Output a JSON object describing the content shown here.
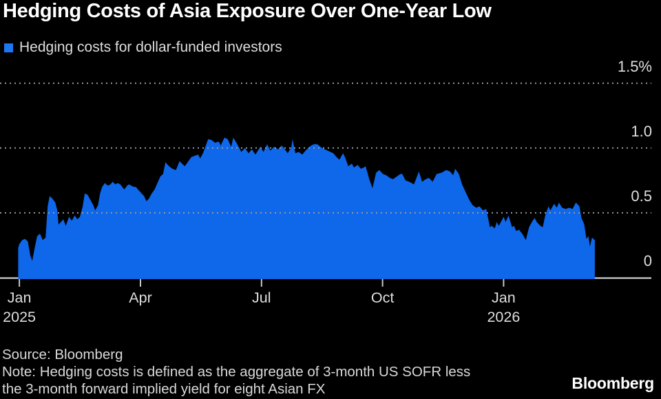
{
  "title": "Hedging Costs of Asia Exposure Over One-Year Low",
  "legend": {
    "label": "Hedging costs for dollar-funded investors",
    "swatch_color": "#1b78f2"
  },
  "footer": {
    "source": "Source: Bloomberg",
    "note_line1": "Note: Hedging costs is defined as the aggregate of 3-month US SOFR less",
    "note_line2": "the 3-month forward implied yield for eight Asian FX",
    "brand": "Bloomberg"
  },
  "colors": {
    "background": "#000000",
    "area": "#0f67ea",
    "grid": "#9a9a9a",
    "axis_line": "#e8e8e8",
    "tick": "#c9c9c9",
    "text": "#dedede",
    "title": "#ffffff"
  },
  "chart_data": {
    "type": "area",
    "title": "Hedging Costs of Asia Exposure Over One-Year Low",
    "unit": "%",
    "grid": "dotted horizontal, drawn over series",
    "legend_position": "top-left",
    "x_axis_note": "x = months since 1 Jan 2025",
    "xlim_months": [
      -0.48,
      15.9
    ],
    "ylim": [
      0,
      1.69
    ],
    "yticks": [
      {
        "v": 0,
        "label": "0"
      },
      {
        "v": 0.5,
        "label": "0.5"
      },
      {
        "v": 1.0,
        "label": "1.0"
      },
      {
        "v": 1.5,
        "label": "1.5%"
      }
    ],
    "xticks": [
      {
        "m": 0,
        "label": "Jan",
        "sub": "2025"
      },
      {
        "m": 3,
        "label": "Apr",
        "sub": ""
      },
      {
        "m": 6,
        "label": "Jul",
        "sub": ""
      },
      {
        "m": 9,
        "label": "Oct",
        "sub": ""
      },
      {
        "m": 12,
        "label": "Jan",
        "sub": "2026"
      }
    ],
    "series": [
      {
        "name": "Hedging costs for dollar-funded investors",
        "points": [
          [
            -0.03,
            0.23
          ],
          [
            0,
            0.26
          ],
          [
            0.07,
            0.29
          ],
          [
            0.14,
            0.3
          ],
          [
            0.21,
            0.28
          ],
          [
            0.27,
            0.17
          ],
          [
            0.32,
            0.13
          ],
          [
            0.38,
            0.23
          ],
          [
            0.44,
            0.32
          ],
          [
            0.51,
            0.34
          ],
          [
            0.58,
            0.29
          ],
          [
            0.65,
            0.31
          ],
          [
            0.7,
            0.55
          ],
          [
            0.75,
            0.63
          ],
          [
            0.82,
            0.61
          ],
          [
            0.89,
            0.58
          ],
          [
            0.94,
            0.52
          ],
          [
            0.97,
            0.41
          ],
          [
            1.03,
            0.43
          ],
          [
            1.09,
            0.45
          ],
          [
            1.15,
            0.4
          ],
          [
            1.23,
            0.47
          ],
          [
            1.3,
            0.44
          ],
          [
            1.37,
            0.48
          ],
          [
            1.44,
            0.45
          ],
          [
            1.5,
            0.47
          ],
          [
            1.57,
            0.55
          ],
          [
            1.62,
            0.65
          ],
          [
            1.69,
            0.64
          ],
          [
            1.76,
            0.6
          ],
          [
            1.83,
            0.56
          ],
          [
            1.88,
            0.52
          ],
          [
            1.95,
            0.56
          ],
          [
            2.0,
            0.65
          ],
          [
            2.05,
            0.7
          ],
          [
            2.12,
            0.73
          ],
          [
            2.19,
            0.71
          ],
          [
            2.26,
            0.72
          ],
          [
            2.31,
            0.74
          ],
          [
            2.38,
            0.72
          ],
          [
            2.43,
            0.73
          ],
          [
            2.5,
            0.72
          ],
          [
            2.55,
            0.7
          ],
          [
            2.6,
            0.68
          ],
          [
            2.67,
            0.71
          ],
          [
            2.72,
            0.72
          ],
          [
            2.77,
            0.71
          ],
          [
            2.84,
            0.7
          ],
          [
            2.89,
            0.7
          ],
          [
            2.94,
            0.68
          ],
          [
            3.03,
            0.65
          ],
          [
            3.09,
            0.63
          ],
          [
            3.15,
            0.59
          ],
          [
            3.21,
            0.61
          ],
          [
            3.28,
            0.65
          ],
          [
            3.35,
            0.68
          ],
          [
            3.42,
            0.73
          ],
          [
            3.49,
            0.78
          ],
          [
            3.56,
            0.8
          ],
          [
            3.62,
            0.89
          ],
          [
            3.71,
            0.86
          ],
          [
            3.79,
            0.84
          ],
          [
            3.88,
            0.83
          ],
          [
            3.97,
            0.9
          ],
          [
            4.03,
            0.88
          ],
          [
            4.1,
            0.86
          ],
          [
            4.17,
            0.89
          ],
          [
            4.26,
            0.93
          ],
          [
            4.34,
            0.94
          ],
          [
            4.43,
            0.95
          ],
          [
            4.48,
            0.92
          ],
          [
            4.55,
            0.96
          ],
          [
            4.62,
            1.02
          ],
          [
            4.68,
            1.07
          ],
          [
            4.77,
            1.06
          ],
          [
            4.85,
            1.04
          ],
          [
            4.94,
            1.05
          ],
          [
            4.99,
            1.02
          ],
          [
            5.08,
            1.08
          ],
          [
            5.16,
            1.07
          ],
          [
            5.25,
            1.01
          ],
          [
            5.3,
            1.08
          ],
          [
            5.38,
            1.04
          ],
          [
            5.45,
            1.0
          ],
          [
            5.5,
            0.97
          ],
          [
            5.59,
            1.0
          ],
          [
            5.68,
            0.96
          ],
          [
            5.76,
            0.99
          ],
          [
            5.85,
            0.95
          ],
          [
            5.91,
            0.98
          ],
          [
            5.97,
            1.01
          ],
          [
            6.05,
            0.97
          ],
          [
            6.14,
            1.03
          ],
          [
            6.22,
            0.98
          ],
          [
            6.31,
            1.01
          ],
          [
            6.41,
            0.99
          ],
          [
            6.5,
            1.02
          ],
          [
            6.58,
            0.99
          ],
          [
            6.65,
            0.96
          ],
          [
            6.74,
            1.01
          ],
          [
            6.77,
            1.07
          ],
          [
            6.84,
            0.96
          ],
          [
            6.92,
            0.97
          ],
          [
            7.01,
            0.95
          ],
          [
            7.09,
            0.98
          ],
          [
            7.16,
            1.0
          ],
          [
            7.23,
            1.02
          ],
          [
            7.3,
            1.03
          ],
          [
            7.38,
            1.03
          ],
          [
            7.5,
            1.0
          ],
          [
            7.64,
            0.98
          ],
          [
            7.78,
            0.96
          ],
          [
            7.86,
            0.93
          ],
          [
            7.93,
            0.91
          ],
          [
            8.02,
            0.96
          ],
          [
            8.07,
            0.93
          ],
          [
            8.15,
            0.86
          ],
          [
            8.24,
            0.88
          ],
          [
            8.29,
            0.85
          ],
          [
            8.38,
            0.87
          ],
          [
            8.46,
            0.84
          ],
          [
            8.53,
            0.85
          ],
          [
            8.58,
            0.86
          ],
          [
            8.67,
            0.76
          ],
          [
            8.75,
            0.69
          ],
          [
            8.84,
            0.81
          ],
          [
            8.92,
            0.83
          ],
          [
            9.01,
            0.8
          ],
          [
            9.09,
            0.79
          ],
          [
            9.18,
            0.77
          ],
          [
            9.26,
            0.76
          ],
          [
            9.35,
            0.78
          ],
          [
            9.44,
            0.8
          ],
          [
            9.49,
            0.8
          ],
          [
            9.57,
            0.75
          ],
          [
            9.66,
            0.74
          ],
          [
            9.78,
            0.72
          ],
          [
            9.9,
            0.82
          ],
          [
            9.98,
            0.74
          ],
          [
            10.07,
            0.76
          ],
          [
            10.15,
            0.77
          ],
          [
            10.24,
            0.74
          ],
          [
            10.34,
            0.8
          ],
          [
            10.46,
            0.81
          ],
          [
            10.58,
            0.83
          ],
          [
            10.67,
            0.82
          ],
          [
            10.75,
            0.79
          ],
          [
            10.8,
            0.84
          ],
          [
            10.89,
            0.8
          ],
          [
            10.97,
            0.72
          ],
          [
            11.06,
            0.66
          ],
          [
            11.15,
            0.6
          ],
          [
            11.23,
            0.56
          ],
          [
            11.32,
            0.54
          ],
          [
            11.4,
            0.55
          ],
          [
            11.49,
            0.52
          ],
          [
            11.57,
            0.53
          ],
          [
            11.66,
            0.39
          ],
          [
            11.71,
            0.4
          ],
          [
            11.78,
            0.38
          ],
          [
            11.83,
            0.43
          ],
          [
            11.88,
            0.4
          ],
          [
            11.95,
            0.44
          ],
          [
            12.0,
            0.47
          ],
          [
            12.05,
            0.43
          ],
          [
            12.12,
            0.48
          ],
          [
            12.21,
            0.39
          ],
          [
            12.26,
            0.4
          ],
          [
            12.31,
            0.36
          ],
          [
            12.38,
            0.37
          ],
          [
            12.46,
            0.34
          ],
          [
            12.55,
            0.29
          ],
          [
            12.63,
            0.39
          ],
          [
            12.72,
            0.44
          ],
          [
            12.77,
            0.46
          ],
          [
            12.82,
            0.43
          ],
          [
            12.91,
            0.4
          ],
          [
            12.97,
            0.39
          ],
          [
            13.03,
            0.48
          ],
          [
            13.11,
            0.55
          ],
          [
            13.16,
            0.52
          ],
          [
            13.25,
            0.57
          ],
          [
            13.32,
            0.54
          ],
          [
            13.37,
            0.58
          ],
          [
            13.45,
            0.54
          ],
          [
            13.54,
            0.53
          ],
          [
            13.62,
            0.54
          ],
          [
            13.71,
            0.53
          ],
          [
            13.79,
            0.58
          ],
          [
            13.88,
            0.55
          ],
          [
            13.93,
            0.46
          ],
          [
            14.0,
            0.41
          ],
          [
            14.05,
            0.3
          ],
          [
            14.1,
            0.32
          ],
          [
            14.14,
            0.24
          ],
          [
            14.19,
            0.31
          ],
          [
            14.26,
            0.29
          ]
        ]
      }
    ]
  }
}
